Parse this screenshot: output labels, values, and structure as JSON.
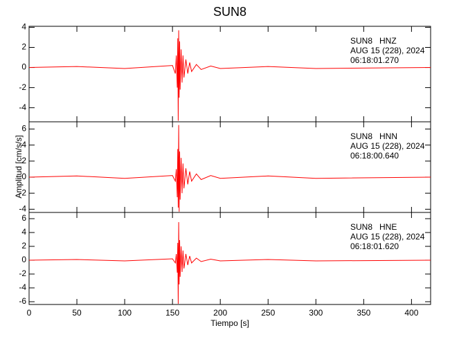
{
  "chart_data": [
    {
      "type": "line",
      "title": "SUN8",
      "annotations": [
        "SUN8   HNZ",
        "AUG 15 (228), 2024",
        "06:18:01.270"
      ],
      "xlim": [
        0,
        420
      ],
      "ylim": [
        -5.4,
        4.1
      ],
      "yticks": [
        -4,
        -2,
        0,
        2,
        4
      ],
      "series": [
        {
          "name": "HNZ",
          "color": "#ff0000",
          "x": [
            0,
            50,
            100,
            150,
            153,
            154,
            155,
            155.5,
            156,
            156.5,
            157,
            157.5,
            158,
            159,
            160,
            161,
            162,
            164,
            166,
            168,
            170,
            175,
            180,
            190,
            200,
            250,
            300,
            420
          ],
          "values": [
            0,
            0.1,
            -0.1,
            0.2,
            -0.6,
            1.2,
            -2.0,
            2.9,
            -5.3,
            3.7,
            -3.0,
            2.6,
            -2.2,
            1.8,
            -1.5,
            1.2,
            -1.0,
            0.8,
            -0.6,
            0.5,
            -0.4,
            0.3,
            -0.2,
            0.15,
            -0.1,
            0.1,
            -0.1,
            0
          ]
        }
      ]
    },
    {
      "type": "line",
      "ylabel": "Amplitud [cm/s/s]",
      "annotations": [
        "SUN8   HNN",
        "AUG 15 (228), 2024",
        "06:18:00.640"
      ],
      "xlim": [
        0,
        420
      ],
      "ylim": [
        -4.4,
        6.9
      ],
      "yticks": [
        -4,
        -2,
        0,
        2,
        4,
        6
      ],
      "series": [
        {
          "name": "HNN",
          "color": "#ff0000",
          "x": [
            0,
            50,
            100,
            150,
            153,
            154,
            155,
            155.5,
            156,
            156.5,
            157,
            157.5,
            158,
            159,
            160,
            161,
            162,
            164,
            166,
            168,
            170,
            175,
            180,
            190,
            200,
            250,
            300,
            420
          ],
          "values": [
            0,
            0.15,
            -0.15,
            0.2,
            -0.5,
            1.0,
            -2.5,
            3.5,
            -3.8,
            6.5,
            -4.3,
            3.2,
            -2.8,
            2.4,
            -2.0,
            1.7,
            -1.4,
            1.1,
            -0.9,
            0.7,
            -0.5,
            0.4,
            -0.3,
            0.2,
            -0.15,
            0.15,
            -0.15,
            0
          ]
        }
      ]
    },
    {
      "type": "line",
      "xlabel": "Tiempo [s]",
      "annotations": [
        "SUN8   HNE",
        "AUG 15 (228), 2024",
        "06:18:01.620"
      ],
      "xlim": [
        0,
        420
      ],
      "ylim": [
        -6.4,
        6.9
      ],
      "yticks": [
        -6,
        -4,
        -2,
        0,
        2,
        4,
        6
      ],
      "xticks": [
        0,
        50,
        100,
        150,
        200,
        250,
        300,
        350,
        400
      ],
      "series": [
        {
          "name": "HNE",
          "color": "#ff0000",
          "x": [
            0,
            50,
            100,
            150,
            153,
            154,
            155,
            155.5,
            156,
            156.5,
            157,
            157.5,
            158,
            159,
            160,
            161,
            162,
            164,
            166,
            168,
            170,
            175,
            180,
            190,
            200,
            250,
            300,
            420
          ],
          "values": [
            0,
            0.1,
            -0.1,
            0.2,
            -0.4,
            0.9,
            -1.8,
            2.5,
            -6.3,
            5.5,
            -3.5,
            2.9,
            -2.4,
            2.0,
            -1.7,
            1.4,
            -1.2,
            0.9,
            -0.7,
            0.6,
            -0.4,
            0.3,
            -0.2,
            0.15,
            -0.1,
            0.1,
            -0.1,
            0
          ]
        }
      ]
    }
  ]
}
